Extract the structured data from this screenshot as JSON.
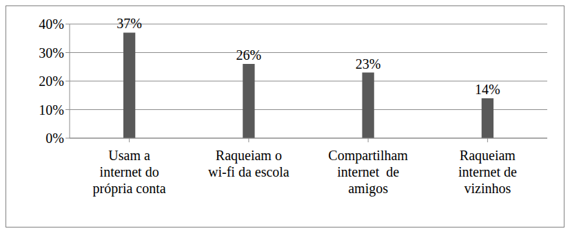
{
  "chart_data": {
    "type": "bar",
    "categories": [
      "Usam a\ninternet do\nprópria conta",
      "Raqueiam o\nwi-fi da escola",
      "Compartilham\ninternet  de\namigos",
      "Raqueiam\ninternet de\nvizinhos"
    ],
    "values": [
      37,
      26,
      23,
      14
    ],
    "value_labels": [
      "37%",
      "26%",
      "23%",
      "14%"
    ],
    "color": "#595959",
    "ylim": [
      0,
      40
    ],
    "yticks": [
      {
        "value": 0,
        "label": "0%"
      },
      {
        "value": 10,
        "label": "10%"
      },
      {
        "value": 20,
        "label": "20%"
      },
      {
        "value": 30,
        "label": "30%"
      },
      {
        "value": 40,
        "label": "40%"
      }
    ],
    "grid": true,
    "data_labels": true
  }
}
